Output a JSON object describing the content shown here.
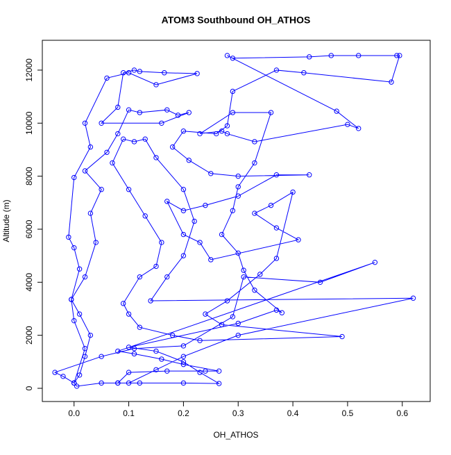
{
  "chart_data": {
    "type": "line",
    "title": "ATOM3 Southbound OH_ATHOS",
    "xlabel": "OH_ATHOS",
    "ylabel": "Altitude (m)",
    "xlim": [
      -0.058,
      0.651
    ],
    "ylim": [
      -498,
      13125
    ],
    "xticks": [
      {
        "value": 0,
        "label": "0.0"
      },
      {
        "value": 0.1,
        "label": "0.1"
      },
      {
        "value": 0.2,
        "label": "0.2"
      },
      {
        "value": 0.3,
        "label": "0.3"
      },
      {
        "value": 0.4,
        "label": "0.4"
      },
      {
        "value": 0.5,
        "label": "0.5"
      },
      {
        "value": 0.6,
        "label": "0.6"
      }
    ],
    "yticks": [
      0,
      2000,
      4000,
      6000,
      8000,
      10000,
      12000
    ],
    "grid": false,
    "series": [
      {
        "color": "#0000ff",
        "x": [
          0.0,
          0.01,
          0.02,
          0.03,
          0.01,
          -0.005,
          0.02,
          0.04,
          0.03,
          0.05,
          0.02,
          0.06,
          0.08,
          0.1,
          0.12,
          0.17,
          0.19,
          0.21,
          0.16,
          0.05,
          0.08,
          0.09,
          0.11,
          0.12,
          0.165,
          0.225,
          0.15,
          0.1,
          0.06,
          0.02,
          0.03,
          0.0,
          -0.01,
          0.0,
          0.01,
          -0.005,
          0.0,
          0.02,
          0.0,
          0.005,
          0.05,
          0.08,
          0.12,
          0.2,
          0.265,
          0.23,
          0.2,
          0.15,
          0.1,
          0.3,
          0.37,
          0.38,
          0.33,
          0.31,
          0.3,
          0.27,
          0.29,
          0.3,
          0.33,
          0.36,
          0.29,
          0.23,
          0.27,
          0.28,
          0.33,
          0.5,
          0.52,
          0.48,
          0.28,
          0.29,
          0.43,
          0.47,
          0.52,
          0.59,
          0.595,
          0.58,
          0.42,
          0.37,
          0.29,
          0.28,
          0.26,
          0.2,
          0.18,
          0.21,
          0.25,
          0.3,
          0.43,
          0.37,
          0.3,
          0.24,
          0.2,
          0.17,
          0.2,
          0.23,
          0.25,
          0.41,
          0.37,
          0.33,
          0.36,
          0.4,
          0.37,
          0.34,
          0.28,
          0.24,
          0.27,
          0.49,
          0.23,
          0.18,
          0.12,
          0.1,
          0.09,
          0.12,
          0.15,
          0.16,
          0.13,
          0.1,
          0.07,
          0.09,
          0.11,
          0.13,
          0.15,
          0.2,
          0.22,
          0.2,
          0.17,
          0.14,
          0.62,
          0.3,
          0.2,
          0.15,
          0.1,
          0.08,
          0.1,
          0.17,
          0.24,
          0.265,
          0.2,
          0.16,
          0.11,
          0.08,
          0.55,
          0.45,
          0.31,
          0.29,
          0.2,
          0.11,
          0.05,
          -0.035,
          -0.02,
          0.0
        ],
        "values": [
          200,
          500,
          1200,
          2000,
          2800,
          3350,
          4200,
          5500,
          6600,
          7500,
          8200,
          8900,
          9600,
          10500,
          10400,
          10500,
          10300,
          10400,
          10000,
          10000,
          10600,
          11900,
          12000,
          11950,
          11900,
          11870,
          11450,
          11900,
          11700,
          10000,
          9100,
          7950,
          5700,
          5300,
          4500,
          3350,
          2550,
          1500,
          200,
          80,
          200,
          200,
          200,
          200,
          180,
          600,
          1000,
          1400,
          1550,
          2450,
          2950,
          2850,
          3700,
          4450,
          5100,
          5800,
          6700,
          7600,
          8500,
          10400,
          10400,
          9600,
          9700,
          9600,
          9300,
          9950,
          9800,
          10450,
          12550,
          12450,
          12500,
          12550,
          12550,
          12550,
          12550,
          11550,
          11900,
          12000,
          11200,
          9900,
          9600,
          9700,
          9100,
          8600,
          8100,
          8000,
          8050,
          8050,
          7250,
          6900,
          6700,
          7050,
          5800,
          5500,
          4850,
          5600,
          6050,
          6600,
          6900,
          7400,
          4900,
          4300,
          3300,
          2800,
          2400,
          1950,
          1800,
          2000,
          2300,
          2800,
          3200,
          4200,
          4600,
          5500,
          6500,
          7500,
          8500,
          9400,
          9300,
          9400,
          8700,
          7500,
          6300,
          5000,
          4200,
          3300,
          3400,
          2000,
          1200,
          700,
          200,
          200,
          600,
          650,
          650,
          650,
          900,
          1100,
          1300,
          1400,
          4750,
          4000,
          4200,
          2700,
          1600,
          1500,
          1200,
          600,
          450,
          200
        ]
      }
    ]
  }
}
